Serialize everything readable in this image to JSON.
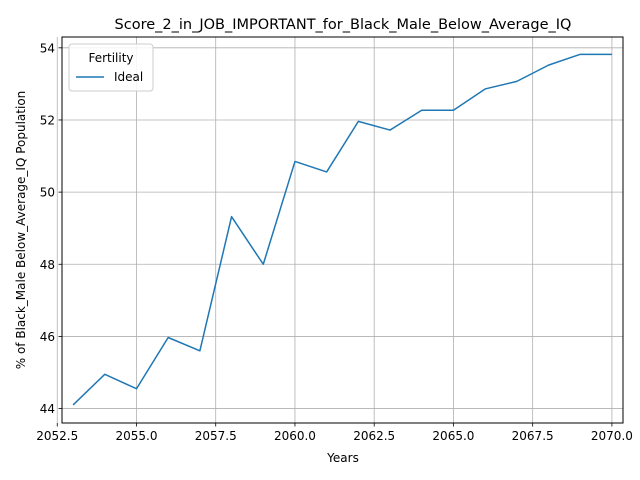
{
  "chart_data": {
    "type": "line",
    "title": "Score_2_in_JOB_IMPORTANT_for_Black_Male_Below_Average_IQ",
    "xlabel": "Years",
    "ylabel": "% of Black_Male Below_Average_IQ Population",
    "xlim": [
      2052.65,
      2070.35
    ],
    "ylim": [
      43.6,
      54.3
    ],
    "x_ticks": [
      2052.5,
      2055.0,
      2057.5,
      2060.0,
      2062.5,
      2065.0,
      2067.5,
      2070.0
    ],
    "x_tick_labels": [
      "2052.5",
      "2055.0",
      "2057.5",
      "2060.0",
      "2062.5",
      "2065.0",
      "2067.5",
      "2070.0"
    ],
    "y_ticks": [
      44,
      46,
      48,
      50,
      52,
      54
    ],
    "y_tick_labels": [
      "44",
      "46",
      "48",
      "50",
      "52",
      "54"
    ],
    "grid": true,
    "legend": {
      "title": "Fertility",
      "placement": "top-left"
    },
    "series": [
      {
        "name": "Ideal",
        "color": "#1f77b4",
        "x": [
          2053,
          2054,
          2055,
          2056,
          2057,
          2058,
          2059,
          2060,
          2061,
          2062,
          2063,
          2064,
          2065,
          2066,
          2067,
          2068,
          2069,
          2070
        ],
        "values": [
          44.1,
          44.95,
          44.55,
          45.97,
          45.6,
          49.32,
          48.0,
          50.85,
          50.56,
          51.96,
          51.72,
          52.27,
          52.27,
          52.86,
          53.07,
          53.52,
          53.82,
          53.82
        ]
      }
    ]
  }
}
